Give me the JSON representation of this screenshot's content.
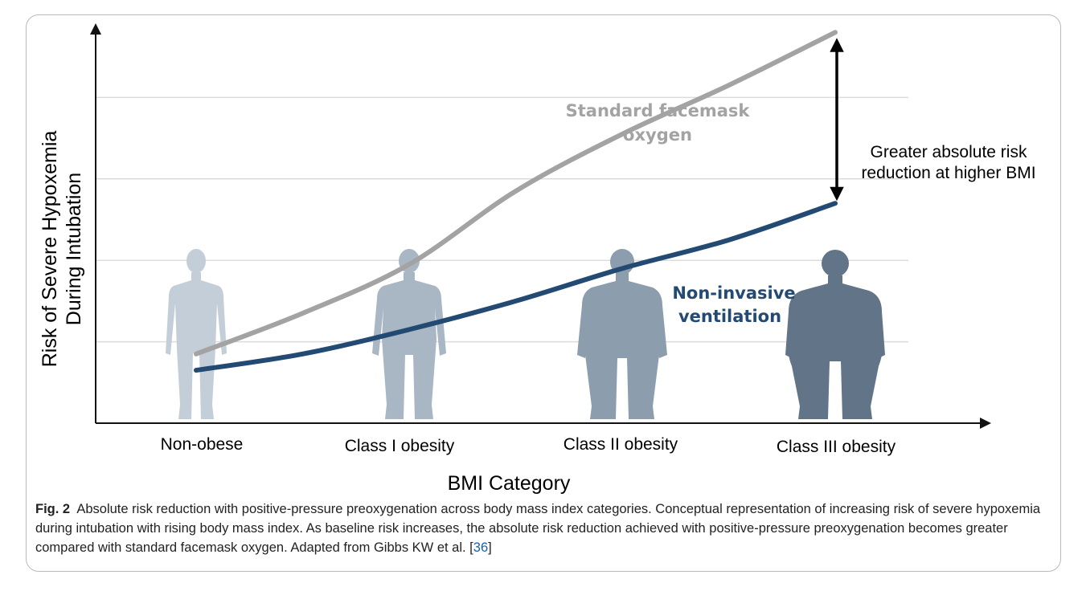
{
  "chart_data": {
    "type": "line",
    "categories": [
      "Non-obese",
      "Class I obesity",
      "Class II obesity",
      "Class III obesity"
    ],
    "x_range": [
      0,
      3
    ],
    "ylim": [
      0,
      1
    ],
    "grid": true,
    "xlabel": "BMI Category",
    "ylabel_lines": [
      "Risk of Severe Hypoxemia",
      "During Intubation"
    ],
    "series": [
      {
        "name": "Standard facemask oxygen",
        "label_lines": [
          "Standard facemask",
          "oxygen"
        ],
        "color": "#a3a3a3",
        "points": [
          [
            0.0,
            0.17
          ],
          [
            0.5,
            0.27
          ],
          [
            1.0,
            0.39
          ],
          [
            1.5,
            0.57
          ],
          [
            2.0,
            0.71
          ],
          [
            2.5,
            0.83
          ],
          [
            3.0,
            0.96
          ]
        ]
      },
      {
        "name": "Non-invasive ventilation",
        "label_lines": [
          "Non-invasive",
          "ventilation"
        ],
        "color": "#234a72",
        "points": [
          [
            0.0,
            0.13
          ],
          [
            0.5,
            0.17
          ],
          [
            1.0,
            0.23
          ],
          [
            1.5,
            0.3
          ],
          [
            2.0,
            0.38
          ],
          [
            2.5,
            0.45
          ],
          [
            3.0,
            0.54
          ]
        ]
      }
    ],
    "annotation": {
      "lines": [
        "Greater absolute risk",
        "reduction at higher BMI"
      ],
      "arrow_at_category": 3
    },
    "figures": [
      {
        "category": "Non-obese",
        "shade": "#c4ced8"
      },
      {
        "category": "Class I obesity",
        "shade": "#a9b7c5"
      },
      {
        "category": "Class II obesity",
        "shade": "#8c9dae"
      },
      {
        "category": "Class III obesity",
        "shade": "#627487"
      }
    ]
  },
  "caption": {
    "figure_label": "Fig. 2",
    "text": "Absolute risk reduction with positive-pressure preoxygenation across body mass index categories. Conceptual representation of increasing risk of severe hypoxemia during intubation with rising body mass index. As baseline risk increases, the absolute risk reduction achieved with positive-pressure preoxygenation becomes greater compared with standard facemask oxygen.  Adapted from Gibbs KW et al. [",
    "reference": "36",
    "closing": "]"
  }
}
